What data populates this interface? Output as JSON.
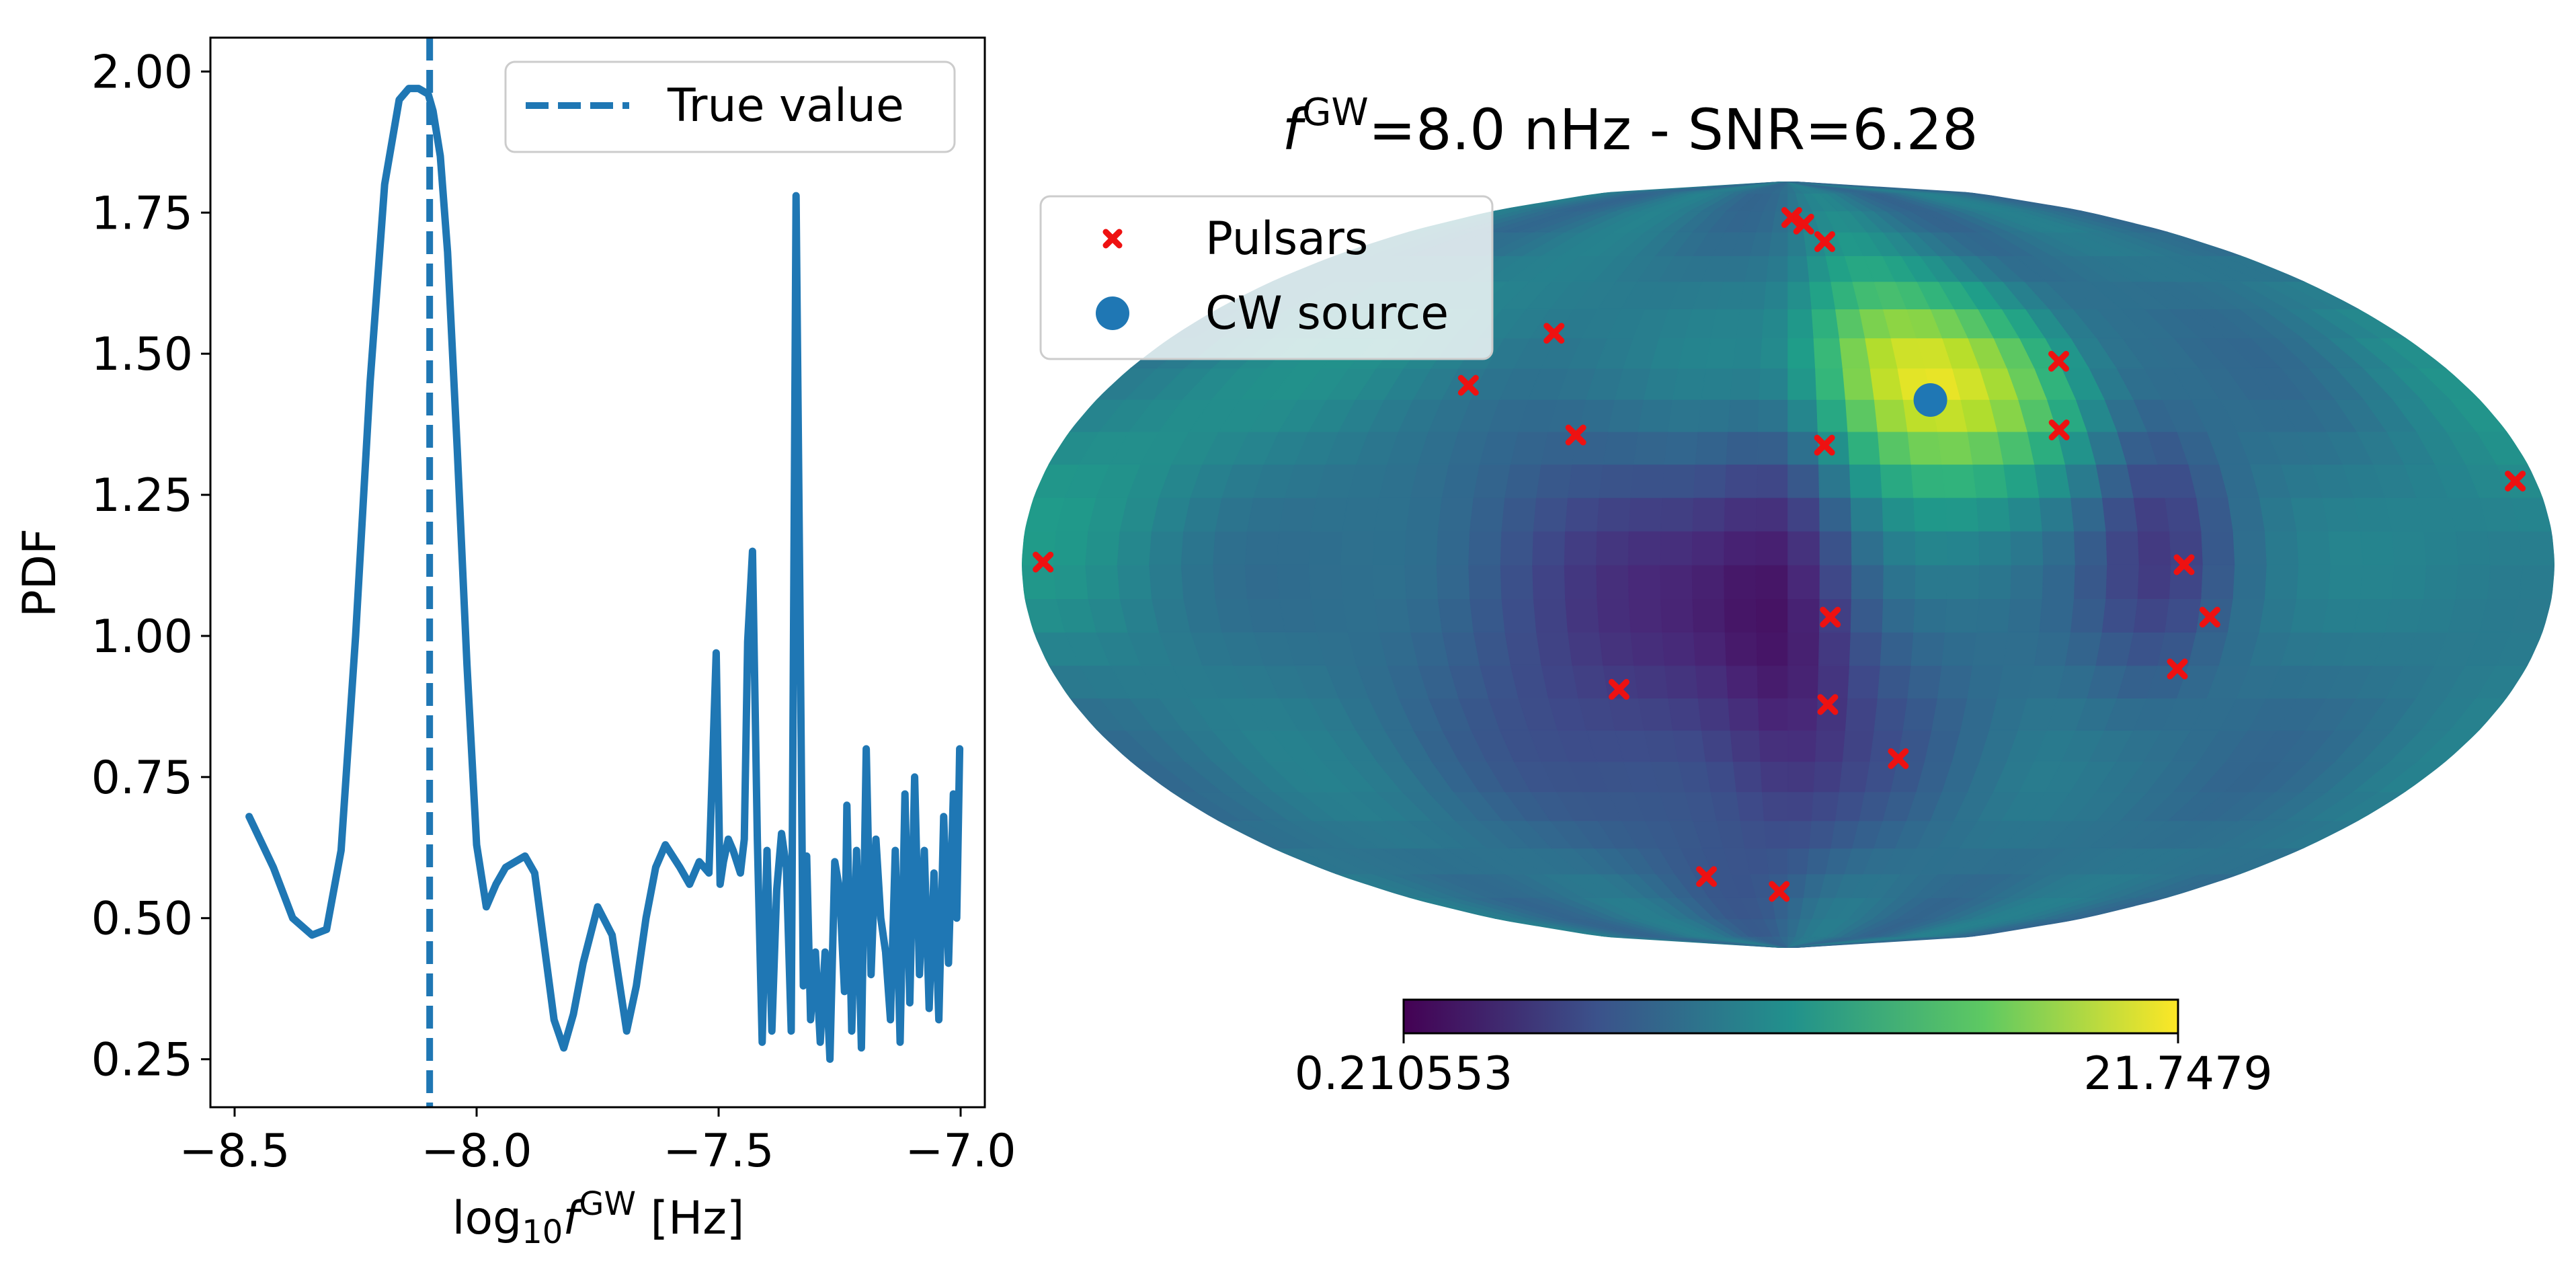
{
  "chart_data": [
    {
      "type": "line",
      "xlabel_prefix": "log",
      "xlabel_sub": "10",
      "xlabel_f": "f",
      "xlabel_sup": "GW",
      "xlabel_suffix": " [Hz]",
      "ylabel": "PDF",
      "xlim": [
        -8.55,
        -6.95
      ],
      "ylim": [
        0.165,
        2.06
      ],
      "xticks": [
        -8.5,
        -8.0,
        -7.5,
        -7.0
      ],
      "xtick_labels": [
        "−8.5",
        "−8.0",
        "−7.5",
        "−7.0"
      ],
      "yticks": [
        0.25,
        0.5,
        0.75,
        1.0,
        1.25,
        1.5,
        1.75,
        2.0
      ],
      "ytick_labels": [
        "0.25",
        "0.50",
        "0.75",
        "1.00",
        "1.25",
        "1.50",
        "1.75",
        "2.00"
      ],
      "legend_label": "True value",
      "legend_loc": "upper right",
      "true_value": -8.097,
      "series": [
        {
          "x": [
            -8.47,
            -8.42,
            -8.38,
            -8.34,
            -8.31,
            -8.28,
            -8.25,
            -8.22,
            -8.19,
            -8.16,
            -8.14,
            -8.12,
            -8.1,
            -8.09,
            -8.075,
            -8.06,
            -8.04,
            -8.02,
            -8.0,
            -7.98,
            -7.96,
            -7.94,
            -7.92,
            -7.9,
            -7.88,
            -7.86,
            -7.84,
            -7.82,
            -7.8,
            -7.78,
            -7.75,
            -7.72,
            -7.69,
            -7.67,
            -7.65,
            -7.63,
            -7.61,
            -7.58,
            -7.56,
            -7.54,
            -7.52,
            -7.505,
            -7.497,
            -7.49,
            -7.48,
            -7.47,
            -7.455,
            -7.447,
            -7.44,
            -7.43,
            -7.42,
            -7.41,
            -7.4,
            -7.39,
            -7.38,
            -7.37,
            -7.36,
            -7.35,
            -7.34,
            -7.332,
            -7.325,
            -7.318,
            -7.31,
            -7.3,
            -7.29,
            -7.28,
            -7.27,
            -7.26,
            -7.25,
            -7.24,
            -7.235,
            -7.225,
            -7.215,
            -7.205,
            -7.195,
            -7.185,
            -7.175,
            -7.165,
            -7.155,
            -7.145,
            -7.135,
            -7.125,
            -7.115,
            -7.105,
            -7.095,
            -7.085,
            -7.075,
            -7.065,
            -7.055,
            -7.045,
            -7.035,
            -7.025,
            -7.015,
            -7.008,
            -7.002
          ],
          "y": [
            0.68,
            0.59,
            0.5,
            0.47,
            0.48,
            0.62,
            1.0,
            1.45,
            1.8,
            1.95,
            1.97,
            1.97,
            1.96,
            1.93,
            1.85,
            1.68,
            1.33,
            0.95,
            0.63,
            0.52,
            0.56,
            0.59,
            0.6,
            0.61,
            0.58,
            0.45,
            0.32,
            0.27,
            0.33,
            0.42,
            0.52,
            0.47,
            0.3,
            0.38,
            0.5,
            0.59,
            0.63,
            0.59,
            0.56,
            0.6,
            0.58,
            0.97,
            0.56,
            0.6,
            0.64,
            0.62,
            0.58,
            0.64,
            0.99,
            1.15,
            0.64,
            0.28,
            0.62,
            0.3,
            0.55,
            0.65,
            0.59,
            0.3,
            1.78,
            1.05,
            0.38,
            0.61,
            0.32,
            0.44,
            0.28,
            0.44,
            0.25,
            0.6,
            0.55,
            0.37,
            0.7,
            0.3,
            0.62,
            0.27,
            0.8,
            0.4,
            0.64,
            0.5,
            0.44,
            0.32,
            0.62,
            0.28,
            0.72,
            0.35,
            0.75,
            0.4,
            0.62,
            0.34,
            0.58,
            0.32,
            0.68,
            0.42,
            0.72,
            0.5,
            0.8
          ]
        }
      ]
    },
    {
      "type": "heatmap",
      "projection": "mollweide",
      "title_f": "f",
      "title_sup": "GW",
      "title_text": "=8.0 nHz - SNR=6.28",
      "colormap": "viridis",
      "colorbar_min_label": "0.210553",
      "colorbar_max_label": "21.7479",
      "colorbar_range": [
        0.210553,
        21.7479
      ],
      "legend_loc": "upper left",
      "pulsars_label": "Pulsars",
      "source_label": "CW source",
      "pulsar_color": "#ee1111",
      "source_color": "#1f77b4",
      "cw_source": {
        "lon": 37,
        "lat": 32
      },
      "pulsars": [
        {
          "lon": -175,
          "lat": 0.5
        },
        {
          "lon": -85,
          "lat": 35
        },
        {
          "lon": -69,
          "lat": 46
        },
        {
          "lon": -53,
          "lat": 25
        },
        {
          "lon": -42,
          "lat": -24
        },
        {
          "lon": -33,
          "lat": -65
        },
        {
          "lon": -4,
          "lat": -69
        },
        {
          "lon": 2,
          "lat": 75
        },
        {
          "lon": 8,
          "lat": 73
        },
        {
          "lon": 16,
          "lat": 68
        },
        {
          "lon": 9,
          "lat": 23
        },
        {
          "lon": 10,
          "lat": -10
        },
        {
          "lon": 10,
          "lat": -27
        },
        {
          "lon": 30,
          "lat": -38
        },
        {
          "lon": 68,
          "lat": 26
        },
        {
          "lon": 75,
          "lat": 40
        },
        {
          "lon": 175,
          "lat": 16
        },
        {
          "lon": 93,
          "lat": 0
        },
        {
          "lon": 100,
          "lat": -10
        },
        {
          "lon": 95,
          "lat": -20
        }
      ]
    }
  ]
}
